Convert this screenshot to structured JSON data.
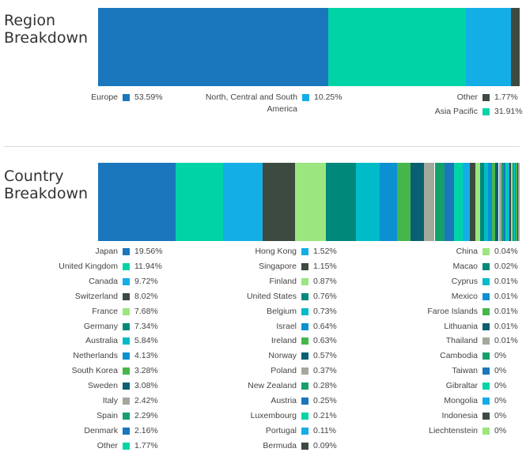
{
  "chart_data": [
    {
      "type": "stacked-bar",
      "title": "Region Breakdown",
      "series": [
        {
          "name": "Europe",
          "value": 53.59,
          "label": "53.59%",
          "color": "#1a77bd"
        },
        {
          "name": "Asia Pacific",
          "value": 31.91,
          "label": "31.91%",
          "color": "#00d4a6"
        },
        {
          "name": "North, Central and South America",
          "value": 10.25,
          "label": "10.25%",
          "color": "#14aee6"
        },
        {
          "name": "Other",
          "value": 1.77,
          "label": "1.77%",
          "color": "#3d4a3f"
        }
      ]
    },
    {
      "type": "stacked-bar",
      "title": "Country Breakdown",
      "series": [
        {
          "name": "Japan",
          "value": 19.56,
          "label": "19.56%",
          "color": "#1a77bd"
        },
        {
          "name": "United Kingdom",
          "value": 11.94,
          "label": "11.94%",
          "color": "#00d4a6"
        },
        {
          "name": "Canada",
          "value": 9.72,
          "label": "9.72%",
          "color": "#14aee6"
        },
        {
          "name": "Switzerland",
          "value": 8.02,
          "label": "8.02%",
          "color": "#3d4a3f"
        },
        {
          "name": "France",
          "value": 7.68,
          "label": "7.68%",
          "color": "#9be67f"
        },
        {
          "name": "Germany",
          "value": 7.34,
          "label": "7.34%",
          "color": "#00897b"
        },
        {
          "name": "Australia",
          "value": 5.84,
          "label": "5.84%",
          "color": "#00bcc8"
        },
        {
          "name": "Netherlands",
          "value": 4.13,
          "label": "4.13%",
          "color": "#0b91d1"
        },
        {
          "name": "South Korea",
          "value": 3.28,
          "label": "3.28%",
          "color": "#46b64b"
        },
        {
          "name": "Sweden",
          "value": 3.08,
          "label": "3.08%",
          "color": "#0a5f73"
        },
        {
          "name": "Italy",
          "value": 2.42,
          "label": "2.42%",
          "color": "#a3a99b"
        },
        {
          "name": "Spain",
          "value": 2.29,
          "label": "2.29%",
          "color": "#15a06b"
        },
        {
          "name": "Denmark",
          "value": 2.16,
          "label": "2.16%",
          "color": "#1a77bd"
        },
        {
          "name": "Other",
          "value": 1.77,
          "label": "1.77%",
          "color": "#00d4a6"
        },
        {
          "name": "Hong Kong",
          "value": 1.52,
          "label": "1.52%",
          "color": "#14aee6"
        },
        {
          "name": "Singapore",
          "value": 1.15,
          "label": "1.15%",
          "color": "#3d4a3f"
        },
        {
          "name": "Finland",
          "value": 0.87,
          "label": "0.87%",
          "color": "#9be67f"
        },
        {
          "name": "United States",
          "value": 0.76,
          "label": "0.76%",
          "color": "#00897b"
        },
        {
          "name": "Belgium",
          "value": 0.73,
          "label": "0.73%",
          "color": "#00bcc8"
        },
        {
          "name": "Israel",
          "value": 0.64,
          "label": "0.64%",
          "color": "#0b91d1"
        },
        {
          "name": "Ireland",
          "value": 0.63,
          "label": "0.63%",
          "color": "#46b64b"
        },
        {
          "name": "Norway",
          "value": 0.57,
          "label": "0.57%",
          "color": "#0a5f73"
        },
        {
          "name": "Poland",
          "value": 0.37,
          "label": "0.37%",
          "color": "#a3a99b"
        },
        {
          "name": "New Zealand",
          "value": 0.28,
          "label": "0.28%",
          "color": "#15a06b"
        },
        {
          "name": "Austria",
          "value": 0.25,
          "label": "0.25%",
          "color": "#1a77bd"
        },
        {
          "name": "Luxembourg",
          "value": 0.21,
          "label": "0.21%",
          "color": "#00d4a6"
        },
        {
          "name": "Portugal",
          "value": 0.11,
          "label": "0.11%",
          "color": "#14aee6"
        },
        {
          "name": "Bermuda",
          "value": 0.09,
          "label": "0.09%",
          "color": "#3d4a3f"
        },
        {
          "name": "China",
          "value": 0.04,
          "label": "0.04%",
          "color": "#9be67f"
        },
        {
          "name": "Macao",
          "value": 0.02,
          "label": "0.02%",
          "color": "#00897b"
        },
        {
          "name": "Cyprus",
          "value": 0.01,
          "label": "0.01%",
          "color": "#00bcc8"
        },
        {
          "name": "Mexico",
          "value": 0.01,
          "label": "0.01%",
          "color": "#0b91d1"
        },
        {
          "name": "Faroe Islands",
          "value": 0.01,
          "label": "0.01%",
          "color": "#46b64b"
        },
        {
          "name": "Lithuania",
          "value": 0.01,
          "label": "0.01%",
          "color": "#0a5f73"
        },
        {
          "name": "Thailand",
          "value": 0.01,
          "label": "0.01%",
          "color": "#a3a99b"
        },
        {
          "name": "Cambodia",
          "value": 0,
          "label": "0%",
          "color": "#15a06b"
        },
        {
          "name": "Taiwan",
          "value": 0,
          "label": "0%",
          "color": "#1a77bd"
        },
        {
          "name": "Gibraltar",
          "value": 0,
          "label": "0%",
          "color": "#00d4a6"
        },
        {
          "name": "Mongolia",
          "value": 0,
          "label": "0%",
          "color": "#14aee6"
        },
        {
          "name": "Indonesia",
          "value": 0,
          "label": "0%",
          "color": "#3d4a3f"
        },
        {
          "name": "Liechtenstein",
          "value": 0,
          "label": "0%",
          "color": "#9be67f"
        }
      ]
    }
  ]
}
